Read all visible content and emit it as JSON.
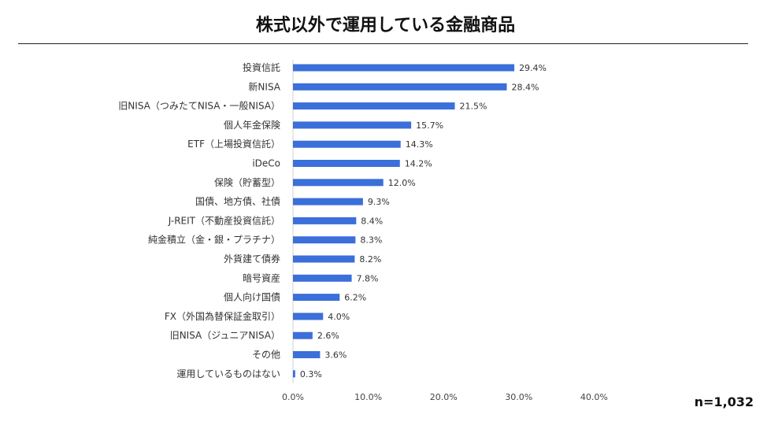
{
  "title": "株式以外で運用している金融商品",
  "note": "n=1,032",
  "colors": {
    "bar": "#3b6fd9",
    "axis": "#d0d0d0"
  },
  "chart_data": {
    "type": "bar",
    "orientation": "horizontal",
    "title": "株式以外で運用している金融商品",
    "categories": [
      "投資信託",
      "新NISA",
      "旧NISA（つみたてNISA・一般NISA）",
      "個人年金保険",
      "ETF（上場投資信託）",
      "iDeCo",
      "保険（貯蓄型）",
      "国債、地方債、社債",
      "J-REIT（不動産投資信託）",
      "純金積立（金・銀・プラチナ）",
      "外貨建て債券",
      "暗号資産",
      "個人向け国債",
      "FX（外国為替保証金取引）",
      "旧NISA（ジュニアNISA）",
      "その他",
      "運用しているものはない"
    ],
    "values": [
      29.4,
      28.4,
      21.5,
      15.7,
      14.3,
      14.2,
      12.0,
      9.3,
      8.4,
      8.3,
      8.2,
      7.8,
      6.2,
      4.0,
      2.6,
      3.6,
      0.3
    ],
    "value_labels": [
      "29.4%",
      "28.4%",
      "21.5%",
      "15.7%",
      "14.3%",
      "14.2%",
      "12.0%",
      "9.3%",
      "8.4%",
      "8.3%",
      "8.2%",
      "7.8%",
      "6.2%",
      "4.0%",
      "2.6%",
      "3.6%",
      "0.3%"
    ],
    "xlim": [
      0,
      40
    ],
    "xticks": [
      0,
      10,
      20,
      30,
      40
    ],
    "xtick_labels": [
      "0.0%",
      "10.0%",
      "20.0%",
      "30.0%",
      "40.0%"
    ],
    "grid": false
  }
}
